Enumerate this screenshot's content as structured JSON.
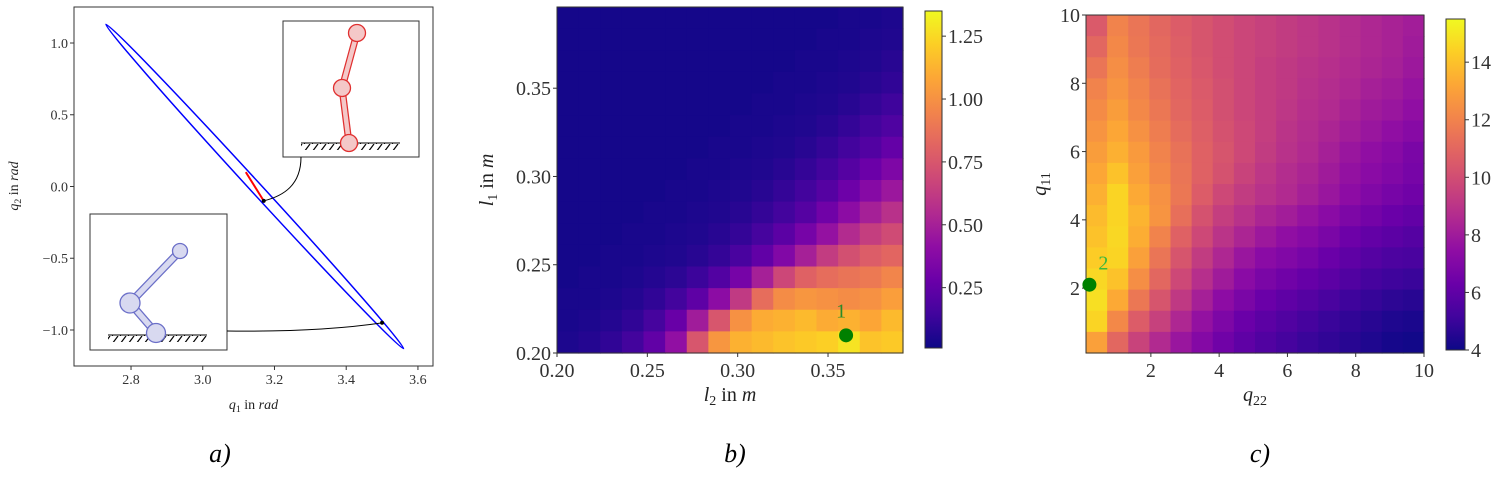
{
  "colors": {
    "ellipse": "#0000ff",
    "trajectory": "#ff0000",
    "marker": "#008000",
    "robot_red": "#e03030",
    "robot_red_fill": "#f4c8c8",
    "robot_blue": "#6b6fc8",
    "robot_blue_fill": "#d8d9f0"
  },
  "captions": [
    "a)",
    "b)",
    "c)"
  ],
  "chart_data": [
    {
      "type": "line",
      "xlim": [
        2.641,
        3.642
      ],
      "ylim": [
        -1.251,
        1.251
      ],
      "xticks": [
        "2.8",
        "3.0",
        "3.2",
        "3.4",
        "3.6"
      ],
      "yticks": [
        "1.0",
        "0.5",
        "0.0",
        "−0.5",
        "−1.0"
      ],
      "xlabel": {
        "sym": "q",
        "sub": "1",
        "rest": " in ",
        "unit": "rad"
      },
      "ylabel": {
        "sym": "q",
        "sub": "2",
        "rest": " in ",
        "unit": "rad"
      },
      "ellipse_extremes": [
        [
          2.73,
          1.13
        ],
        [
          3.56,
          -1.13
        ]
      ],
      "trajectory": [
        [
          3.12,
          0.1
        ],
        [
          3.17,
          -0.1
        ]
      ],
      "markers": [
        [
          3.17,
          -0.1
        ],
        [
          3.5,
          -0.95
        ]
      ],
      "grid": false
    },
    {
      "type": "heatmap",
      "colormap": "plasma",
      "xlim": [
        0.2,
        0.3915
      ],
      "ylim": [
        0.2,
        0.396
      ],
      "xticks": [
        "0.20",
        "0.25",
        "0.30",
        "0.35"
      ],
      "yticks": [
        "0.20",
        "0.25",
        "0.30",
        "0.35"
      ],
      "xlabel": {
        "sym": "l",
        "sub": "2",
        "rest": " in ",
        "unit": "m"
      },
      "ylabel": {
        "sym": "l",
        "sub": "1",
        "rest": " in ",
        "unit": "m"
      },
      "colorbar": {
        "range": [
          0.01,
          1.35
        ],
        "ticks": [
          "0.25",
          "0.50",
          "0.75",
          "1.00",
          "1.25"
        ]
      },
      "point": {
        "x": 0.36,
        "y": 0.21,
        "label": "1"
      },
      "values_rows_top_to_bottom": [
        [
          0.03,
          0.03,
          0.03,
          0.03,
          0.03,
          0.03,
          0.03,
          0.03,
          0.03,
          0.03,
          0.03,
          0.03,
          0.03,
          0.04,
          0.04,
          0.05
        ],
        [
          0.03,
          0.03,
          0.03,
          0.03,
          0.03,
          0.03,
          0.03,
          0.03,
          0.03,
          0.03,
          0.03,
          0.03,
          0.04,
          0.04,
          0.05,
          0.06
        ],
        [
          0.03,
          0.03,
          0.03,
          0.03,
          0.03,
          0.03,
          0.03,
          0.03,
          0.03,
          0.03,
          0.03,
          0.04,
          0.04,
          0.05,
          0.06,
          0.08
        ],
        [
          0.03,
          0.03,
          0.03,
          0.03,
          0.03,
          0.03,
          0.03,
          0.03,
          0.03,
          0.03,
          0.04,
          0.04,
          0.05,
          0.06,
          0.08,
          0.1
        ],
        [
          0.03,
          0.03,
          0.03,
          0.03,
          0.03,
          0.03,
          0.03,
          0.03,
          0.03,
          0.04,
          0.04,
          0.05,
          0.06,
          0.08,
          0.11,
          0.14
        ],
        [
          0.03,
          0.03,
          0.03,
          0.03,
          0.03,
          0.03,
          0.03,
          0.03,
          0.04,
          0.04,
          0.05,
          0.06,
          0.08,
          0.11,
          0.15,
          0.19
        ],
        [
          0.03,
          0.03,
          0.03,
          0.03,
          0.03,
          0.03,
          0.03,
          0.04,
          0.04,
          0.05,
          0.06,
          0.08,
          0.11,
          0.15,
          0.2,
          0.26
        ],
        [
          0.03,
          0.03,
          0.03,
          0.03,
          0.03,
          0.03,
          0.04,
          0.04,
          0.05,
          0.06,
          0.08,
          0.11,
          0.15,
          0.21,
          0.28,
          0.35
        ],
        [
          0.03,
          0.03,
          0.03,
          0.03,
          0.03,
          0.04,
          0.04,
          0.05,
          0.06,
          0.08,
          0.11,
          0.15,
          0.21,
          0.29,
          0.38,
          0.46
        ],
        [
          0.03,
          0.03,
          0.03,
          0.03,
          0.04,
          0.04,
          0.05,
          0.06,
          0.08,
          0.11,
          0.15,
          0.21,
          0.3,
          0.4,
          0.5,
          0.58
        ],
        [
          0.03,
          0.03,
          0.03,
          0.04,
          0.04,
          0.05,
          0.06,
          0.08,
          0.11,
          0.16,
          0.23,
          0.32,
          0.43,
          0.55,
          0.64,
          0.7
        ],
        [
          0.03,
          0.03,
          0.04,
          0.04,
          0.05,
          0.06,
          0.08,
          0.11,
          0.17,
          0.25,
          0.36,
          0.5,
          0.63,
          0.72,
          0.78,
          0.82
        ],
        [
          0.03,
          0.04,
          0.04,
          0.05,
          0.07,
          0.09,
          0.13,
          0.2,
          0.32,
          0.5,
          0.68,
          0.8,
          0.85,
          0.88,
          0.9,
          0.95
        ],
        [
          0.04,
          0.04,
          0.05,
          0.07,
          0.1,
          0.15,
          0.24,
          0.4,
          0.62,
          0.85,
          0.98,
          1.02,
          1.0,
          0.98,
          1.0,
          1.05
        ],
        [
          0.04,
          0.05,
          0.07,
          0.1,
          0.16,
          0.27,
          0.48,
          0.75,
          1.0,
          1.1,
          1.12,
          1.15,
          1.1,
          1.12,
          1.08,
          1.15
        ],
        [
          0.05,
          0.07,
          0.1,
          0.15,
          0.25,
          0.42,
          0.75,
          1.02,
          1.12,
          1.15,
          1.18,
          1.2,
          1.22,
          1.28,
          1.18,
          1.2
        ]
      ]
    },
    {
      "type": "heatmap",
      "colormap": "plasma",
      "xlim": [
        0.1,
        10
      ],
      "ylim": [
        0.1,
        10
      ],
      "xticks": [
        "2",
        "4",
        "6",
        "8",
        "10"
      ],
      "yticks": [
        "2",
        "4",
        "6",
        "8",
        "10"
      ],
      "xlabel": {
        "sym": "q",
        "sub": "22",
        "rest": "",
        "unit": ""
      },
      "ylabel": {
        "sym": "q",
        "sub": "11",
        "rest": "",
        "unit": ""
      },
      "colorbar": {
        "range": [
          4,
          15.5
        ],
        "ticks": [
          "4",
          "6",
          "8",
          "10",
          "12",
          "14"
        ]
      },
      "point": {
        "x": 0.2,
        "y": 2.1,
        "label": "2"
      },
      "values_rows_top_to_bottom": [
        [
          10.5,
          12.0,
          11.5,
          11.0,
          10.6,
          10.3,
          10.0,
          9.7,
          9.5,
          9.3,
          9.1,
          8.9,
          8.7,
          8.5,
          8.3,
          8.1
        ],
        [
          11.0,
          12.2,
          11.6,
          11.1,
          10.7,
          10.3,
          10.0,
          9.7,
          9.5,
          9.3,
          9.1,
          8.9,
          8.7,
          8.5,
          8.3,
          8.0
        ],
        [
          11.5,
          12.4,
          11.8,
          11.2,
          10.8,
          10.4,
          10.0,
          9.7,
          9.4,
          9.2,
          9.0,
          8.8,
          8.6,
          8.4,
          8.2,
          7.9
        ],
        [
          12.0,
          12.6,
          12.0,
          11.4,
          10.9,
          10.5,
          10.1,
          9.7,
          9.4,
          9.2,
          8.9,
          8.7,
          8.5,
          8.2,
          8.0,
          7.7
        ],
        [
          12.3,
          12.9,
          12.2,
          11.6,
          11.0,
          10.6,
          10.1,
          9.7,
          9.4,
          9.1,
          8.8,
          8.6,
          8.3,
          8.0,
          7.8,
          7.5
        ],
        [
          12.6,
          13.2,
          12.5,
          11.8,
          11.2,
          10.7,
          10.2,
          9.8,
          9.4,
          9.0,
          8.7,
          8.4,
          8.1,
          7.8,
          7.5,
          7.2
        ],
        [
          12.9,
          13.5,
          12.8,
          12.0,
          11.4,
          10.8,
          10.3,
          9.8,
          9.3,
          8.9,
          8.6,
          8.2,
          7.8,
          7.5,
          7.2,
          6.8
        ],
        [
          13.2,
          14.0,
          13.0,
          12.2,
          11.5,
          10.8,
          10.2,
          9.6,
          9.1,
          8.7,
          8.4,
          8.0,
          7.6,
          7.3,
          7.0,
          6.7
        ],
        [
          13.5,
          14.5,
          13.3,
          12.5,
          11.6,
          10.6,
          9.8,
          9.3,
          8.9,
          8.6,
          8.2,
          7.8,
          7.4,
          7.0,
          6.7,
          6.5
        ],
        [
          13.8,
          14.5,
          13.6,
          12.6,
          11.3,
          10.2,
          9.4,
          8.9,
          8.4,
          8.1,
          7.7,
          7.3,
          6.9,
          6.6,
          6.3,
          6.1
        ],
        [
          14.0,
          14.6,
          13.4,
          12.0,
          10.8,
          9.8,
          9.0,
          8.4,
          7.9,
          7.5,
          7.2,
          6.8,
          6.4,
          6.1,
          5.9,
          5.7
        ],
        [
          14.3,
          14.5,
          13.0,
          11.5,
          10.3,
          9.3,
          8.5,
          7.8,
          7.3,
          7.0,
          6.7,
          6.3,
          6.0,
          5.7,
          5.5,
          5.4
        ],
        [
          14.6,
          14.0,
          12.4,
          11.0,
          9.8,
          8.8,
          8.0,
          7.3,
          6.8,
          6.5,
          6.2,
          5.9,
          5.6,
          5.3,
          5.1,
          5.0
        ],
        [
          14.8,
          13.3,
          11.6,
          10.3,
          9.2,
          8.2,
          7.4,
          6.8,
          6.3,
          6.0,
          5.7,
          5.4,
          5.1,
          4.9,
          4.7,
          4.6
        ],
        [
          14.5,
          12.2,
          10.6,
          9.5,
          8.5,
          7.6,
          6.9,
          6.3,
          5.9,
          5.6,
          5.3,
          5.0,
          4.8,
          4.6,
          4.4,
          4.3
        ],
        [
          13.0,
          11.0,
          9.6,
          8.6,
          7.8,
          7.1,
          6.5,
          6.0,
          5.6,
          5.3,
          5.0,
          4.8,
          4.6,
          4.4,
          4.2,
          4.1
        ]
      ]
    }
  ]
}
